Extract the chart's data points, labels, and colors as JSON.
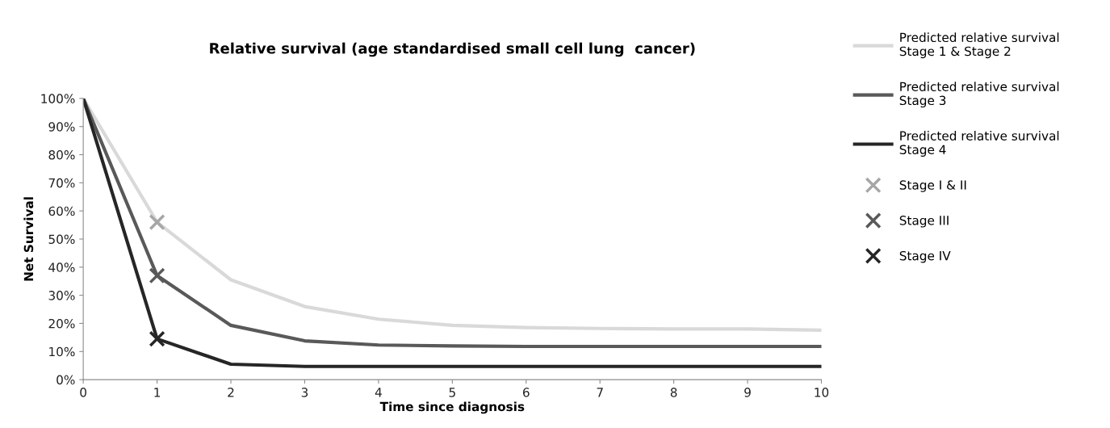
{
  "chart_data": {
    "type": "line",
    "title": "Relative survival (age standardised small cell lung  cancer)",
    "xlabel": "Time since diagnosis",
    "ylabel": "Net Survival",
    "x": [
      0,
      1,
      2,
      3,
      4,
      5,
      6,
      7,
      8,
      9,
      10
    ],
    "series": [
      {
        "name": "Predicted relative survival\nStage 1 & Stage 2",
        "color": "#d9d9d9",
        "values": [
          100,
          56,
          35.5,
          26,
          21.5,
          19.3,
          18.5,
          18.2,
          18,
          18,
          17.6
        ]
      },
      {
        "name": "Predicted relative survival\nStage 3",
        "color": "#595959",
        "values": [
          100,
          37,
          19.3,
          13.8,
          12.3,
          12,
          11.8,
          11.8,
          11.8,
          11.8,
          11.8
        ]
      },
      {
        "name": "Predicted relative survival\nStage 4",
        "color": "#262626",
        "values": [
          100,
          14.5,
          5.5,
          4.7,
          4.7,
          4.7,
          4.7,
          4.7,
          4.7,
          4.7,
          4.7
        ]
      },
      {
        "name": "Stage I & II",
        "type": "scatter",
        "marker": "cross",
        "color": "#a6a6a6",
        "values": [
          null,
          56,
          null,
          null,
          null,
          null,
          null,
          null,
          null,
          null,
          null
        ]
      },
      {
        "name": "Stage III",
        "type": "scatter",
        "marker": "cross",
        "color": "#595959",
        "values": [
          null,
          37,
          null,
          null,
          null,
          null,
          null,
          null,
          null,
          null,
          null
        ]
      },
      {
        "name": "Stage IV",
        "type": "scatter",
        "marker": "cross",
        "color": "#262626",
        "values": [
          null,
          14.5,
          null,
          null,
          null,
          null,
          null,
          null,
          null,
          null,
          null
        ]
      }
    ],
    "xlim": [
      0,
      10
    ],
    "xticks": [
      0,
      1,
      2,
      3,
      4,
      5,
      6,
      7,
      8,
      9,
      10
    ],
    "ylim": [
      0,
      100
    ],
    "yticks": [
      {
        "value": 0,
        "label": "0%"
      },
      {
        "value": 10,
        "label": "10%"
      },
      {
        "value": 20,
        "label": "20%"
      },
      {
        "value": 30,
        "label": "30%"
      },
      {
        "value": 40,
        "label": "40%"
      },
      {
        "value": 50,
        "label": "50%"
      },
      {
        "value": 60,
        "label": "60%"
      },
      {
        "value": 70,
        "label": "70%"
      },
      {
        "value": 80,
        "label": "80%"
      },
      {
        "value": 90,
        "label": "90%"
      },
      {
        "value": 100,
        "label": "100%"
      }
    ],
    "grid": false,
    "legend": "right"
  }
}
